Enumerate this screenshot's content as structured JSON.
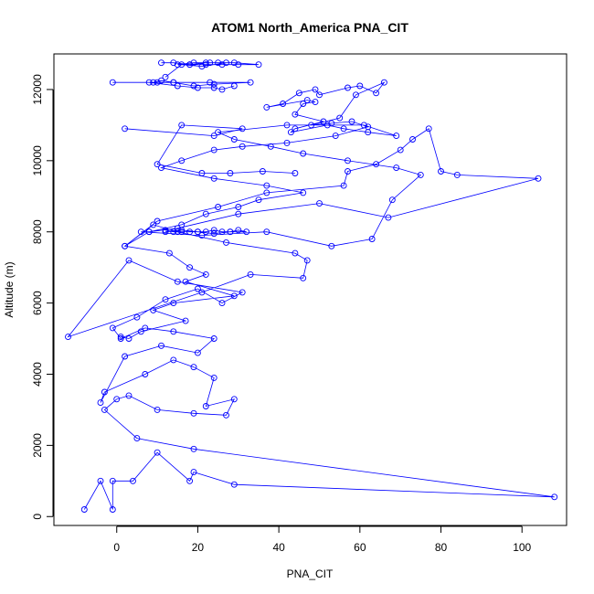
{
  "chart_data": {
    "type": "scatter",
    "title": "ATOM1 North_America PNA_CIT",
    "xlabel": "PNA_CIT",
    "ylabel": "Altitude (m)",
    "xlim": [
      -15.5,
      111
    ],
    "ylim": [
      -250,
      13000
    ],
    "x_ticks": [
      0,
      20,
      40,
      60,
      80,
      100
    ],
    "y_ticks": [
      0,
      2000,
      4000,
      6000,
      8000,
      10000,
      12000
    ],
    "grid": false,
    "legend": "none",
    "color": "#0000ff",
    "marker": "open-circle",
    "connected": true,
    "series": [
      {
        "x": [
          -8,
          -4,
          -1,
          -1,
          4,
          10,
          18,
          19,
          29,
          108,
          19,
          5,
          -3,
          0,
          3,
          10,
          19,
          27,
          29,
          22,
          24,
          19,
          14,
          7,
          -3,
          -4,
          2,
          11,
          20,
          24,
          14,
          7,
          1,
          -1,
          5,
          12,
          20,
          26,
          31,
          15,
          3,
          -12,
          21,
          33,
          46,
          47,
          44,
          27,
          15,
          9,
          2,
          10,
          25,
          37,
          56,
          57,
          64,
          70,
          73,
          77,
          80,
          84,
          104,
          67,
          50,
          30,
          15,
          8,
          6,
          21,
          37,
          53,
          63,
          68,
          75,
          69,
          57,
          46,
          38,
          29,
          25,
          42,
          61,
          69,
          62,
          56,
          52,
          43,
          44,
          51,
          44,
          46,
          49,
          47,
          37,
          41,
          45,
          49,
          50,
          57,
          60,
          64,
          66,
          59,
          55,
          48,
          53,
          58,
          62,
          54,
          42,
          31,
          24,
          16,
          11,
          24,
          37,
          46,
          35,
          30,
          22,
          16,
          8,
          2,
          13,
          18,
          22,
          17,
          29,
          14,
          9,
          17,
          6,
          3,
          1
        ],
        "y": [
          200,
          1000,
          200,
          1000,
          1000,
          1800,
          1000,
          1250,
          900,
          550,
          1900,
          2200,
          3000,
          3300,
          3400,
          3000,
          2900,
          2850,
          3300,
          3100,
          3900,
          4200,
          4400,
          4000,
          3500,
          3200,
          4500,
          4800,
          4600,
          5000,
          5200,
          5300,
          5000,
          5300,
          5600,
          6100,
          6400,
          6000,
          6300,
          6600,
          7200,
          5050,
          6300,
          6800,
          6700,
          7200,
          7400,
          7700,
          8000,
          8200,
          7600,
          8300,
          8700,
          9100,
          9300,
          9700,
          9900,
          10300,
          10600,
          10900,
          9700,
          9600,
          9500,
          8400,
          8800,
          8500,
          8100,
          8000,
          8000,
          7900,
          8000,
          7600,
          7800,
          8900,
          9600,
          9800,
          10000,
          10200,
          10400,
          10600,
          10800,
          11000,
          11000,
          10700,
          10800,
          10900,
          11000,
          10800,
          10900,
          11100,
          11300,
          11600,
          11650,
          11700,
          11500,
          11600,
          11900,
          12000,
          11850,
          12050,
          12100,
          11900,
          12200,
          11850,
          11200,
          11000,
          11050,
          11100,
          10950,
          10700,
          10500,
          10400,
          10300,
          10000,
          9800,
          9500,
          9300,
          9100,
          8900,
          8700,
          8500,
          8200,
          8000,
          7600,
          7400,
          7000,
          6800,
          6600,
          6200,
          6000,
          5800,
          5500,
          5200,
          5000,
          5050
        ]
      },
      {
        "x": [
          -1,
          9,
          11,
          14,
          19,
          24,
          33,
          23,
          14,
          10,
          8,
          15,
          20,
          24,
          26,
          29
        ],
        "y": [
          12200,
          12200,
          12250,
          12200,
          12100,
          12150,
          12200,
          12200,
          12200,
          12200,
          12200,
          12100,
          12050,
          12050,
          12000,
          12100
        ]
      },
      {
        "x": [
          11,
          14,
          18,
          22,
          25,
          29,
          35,
          30,
          26,
          22,
          18,
          15,
          19,
          23,
          27,
          21,
          16,
          12
        ],
        "y": [
          12750,
          12750,
          12700,
          12750,
          12750,
          12750,
          12700,
          12700,
          12700,
          12700,
          12700,
          12700,
          12750,
          12750,
          12750,
          12650,
          12700,
          12350
        ]
      },
      {
        "x": [
          12,
          14,
          16,
          18,
          20,
          22,
          24,
          26,
          28,
          30,
          32,
          28,
          24,
          20,
          16,
          12
        ],
        "y": [
          8050,
          8000,
          8000,
          8000,
          8000,
          8000,
          8050,
          8000,
          8000,
          8050,
          8000,
          8000,
          7950,
          8000,
          8050,
          8000
        ]
      },
      {
        "x": [
          2,
          24,
          31,
          16,
          10,
          21,
          28,
          36,
          44
        ],
        "y": [
          10900,
          10700,
          10900,
          11000,
          9900,
          9650,
          9650,
          9700,
          9650
        ]
      }
    ]
  }
}
